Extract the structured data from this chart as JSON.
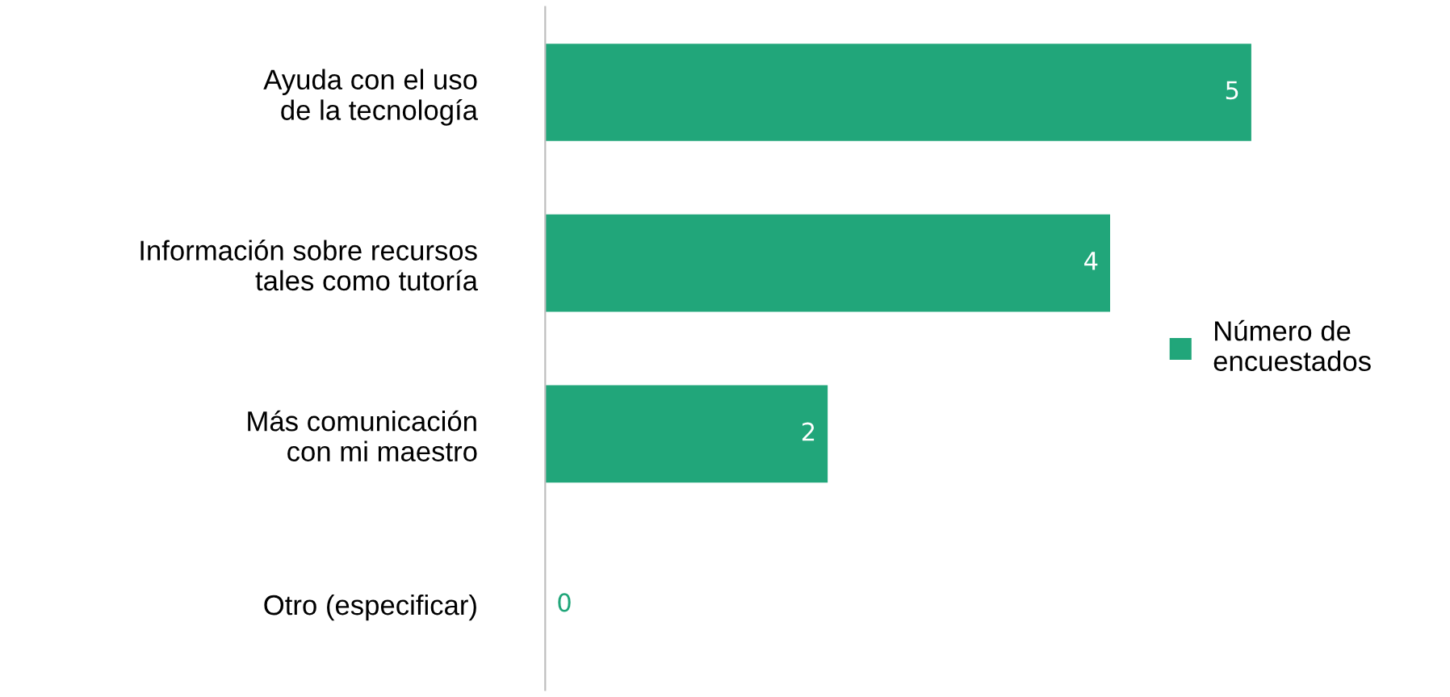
{
  "chart_data": {
    "type": "bar",
    "orientation": "horizontal",
    "categories": [
      "Ayuda con el uso\nde la tecnología",
      "Información sobre recursos\ntales como tutoría",
      "Más comunicación\ncon mi maestro",
      "Otro (especificar)"
    ],
    "series": [
      {
        "name": "Número de\nencuestados",
        "color": "#21a67a",
        "values": [
          5,
          4,
          2,
          0
        ]
      }
    ],
    "data_labels": true,
    "legend": "right",
    "grid": false
  }
}
